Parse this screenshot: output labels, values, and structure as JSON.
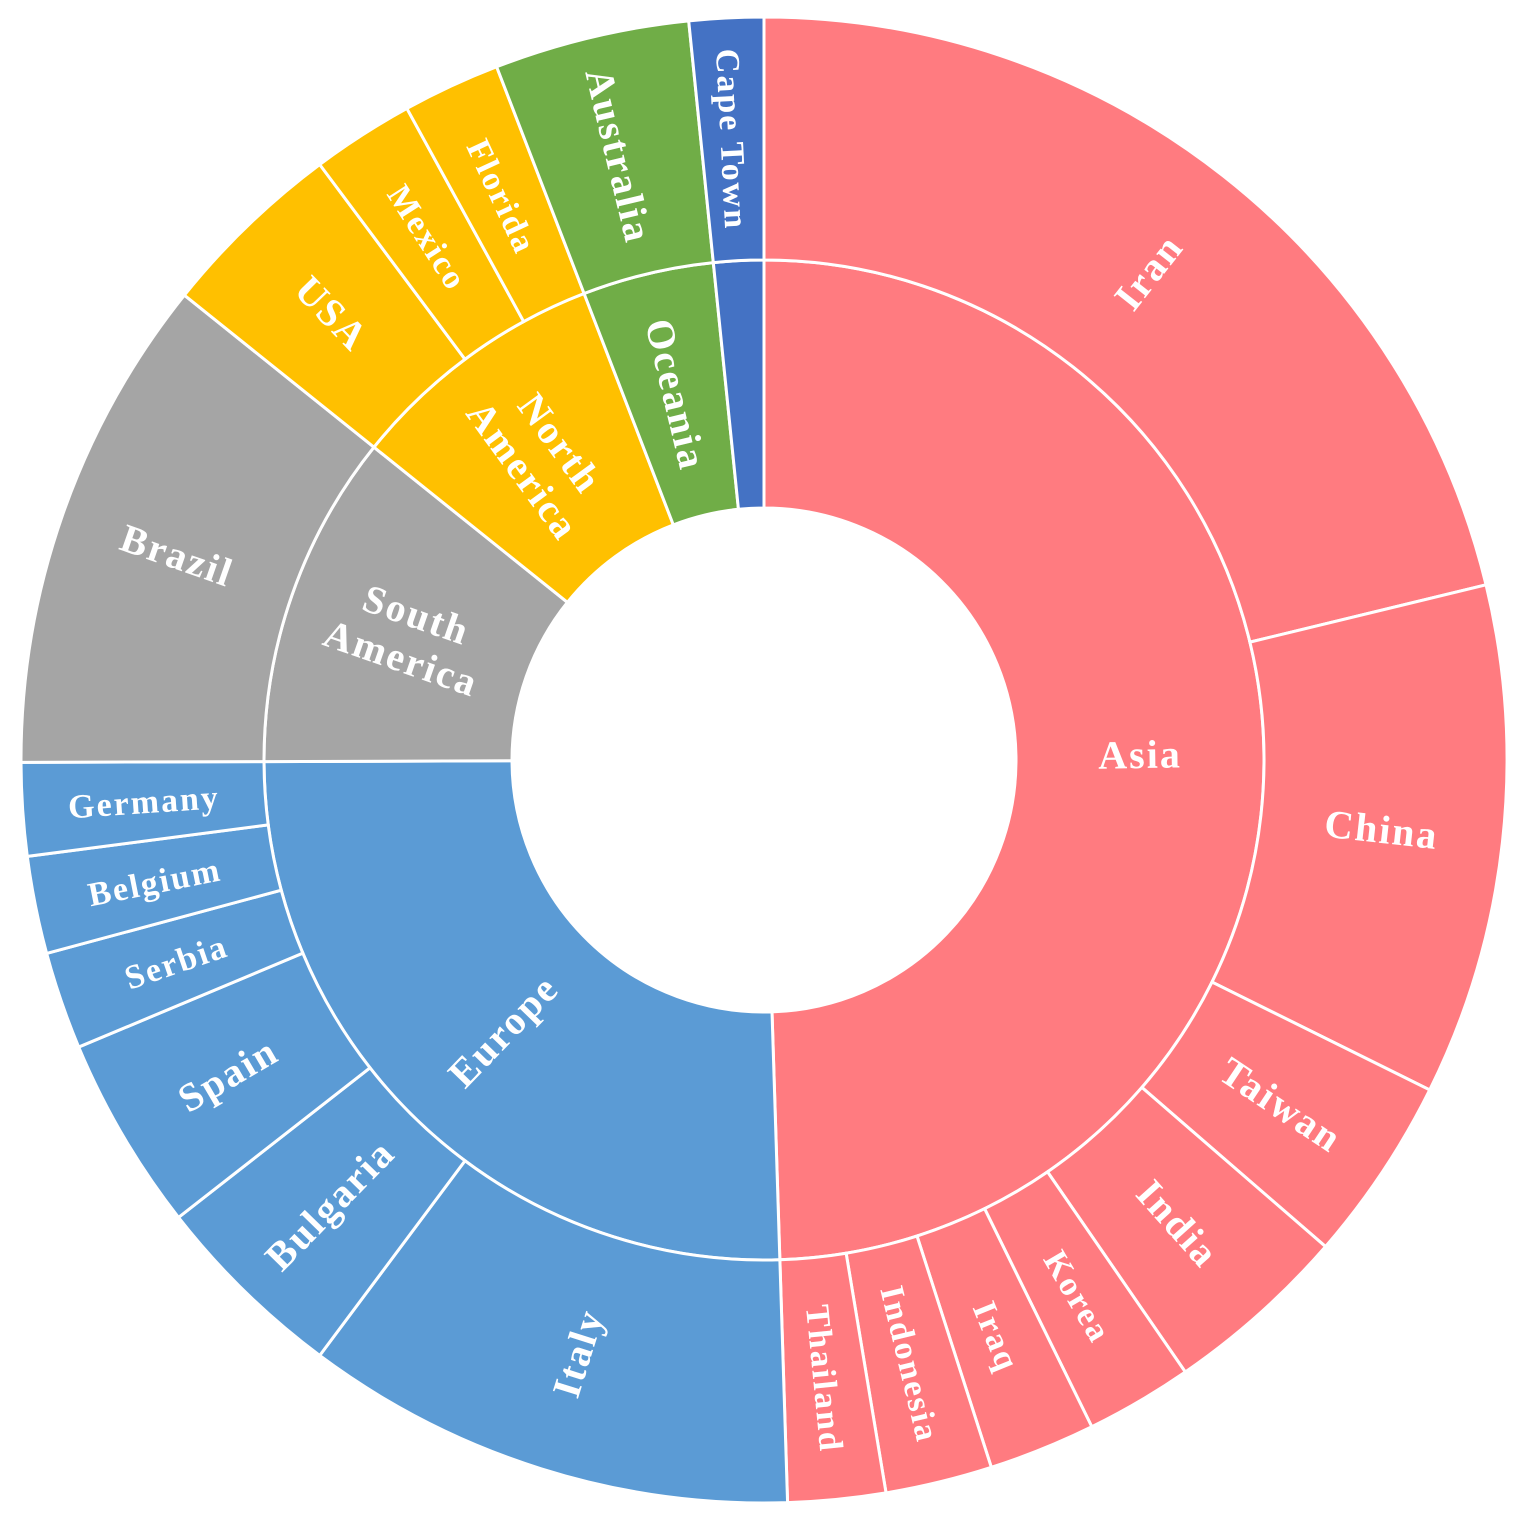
{
  "chart_data": {
    "type": "sunburst",
    "title": "",
    "colors": {
      "Asia": "#FF7B80",
      "Europe": "#5B9BD5",
      "South America": "#A5A5A5",
      "North America": "#FFC000",
      "Oceania": "#70AD47",
      "Africa": "#4472C4"
    },
    "groups": [
      {
        "name": "Asia",
        "color_key": "Asia",
        "value": 49,
        "children": [
          {
            "name": "Iran",
            "value": 21
          },
          {
            "name": "China",
            "value": 11
          },
          {
            "name": "Taiwan",
            "value": 4
          },
          {
            "name": "India",
            "value": 4
          },
          {
            "name": "Korea",
            "value": 2.3
          },
          {
            "name": "Iraq",
            "value": 2.3
          },
          {
            "name": "Indonesia",
            "value": 2.3
          },
          {
            "name": "Thailand",
            "value": 2.1
          }
        ]
      },
      {
        "name": "Europe",
        "color_key": "Europe",
        "value": 25.2,
        "children": [
          {
            "name": "Italy",
            "value": 10.6
          },
          {
            "name": "Bulgaria",
            "value": 4.2
          },
          {
            "name": "Spain",
            "value": 4.2
          },
          {
            "name": "Serbia",
            "value": 2.1
          },
          {
            "name": "Belgium",
            "value": 2.1
          },
          {
            "name": "Germany",
            "value": 2
          }
        ]
      },
      {
        "name": "South\nAmerica",
        "color_key": "South America",
        "value": 10.7,
        "children": [
          {
            "name": "Brazil",
            "value": 10.7
          }
        ]
      },
      {
        "name": "North\nAmerica",
        "color_key": "North America",
        "value": 8.3,
        "children": [
          {
            "name": "USA",
            "value": 4
          },
          {
            "name": "Mexico",
            "value": 2.2
          },
          {
            "name": "Florida",
            "value": 2.1
          }
        ]
      },
      {
        "name": "Oceania",
        "color_key": "Oceania",
        "value": 4.2,
        "children": [
          {
            "name": "Australia",
            "value": 4.2
          }
        ]
      },
      {
        "name": "",
        "color_key": "Africa",
        "value": 1.6,
        "children": [
          {
            "name": "Cape Town",
            "value": 1.6
          }
        ]
      }
    ]
  }
}
